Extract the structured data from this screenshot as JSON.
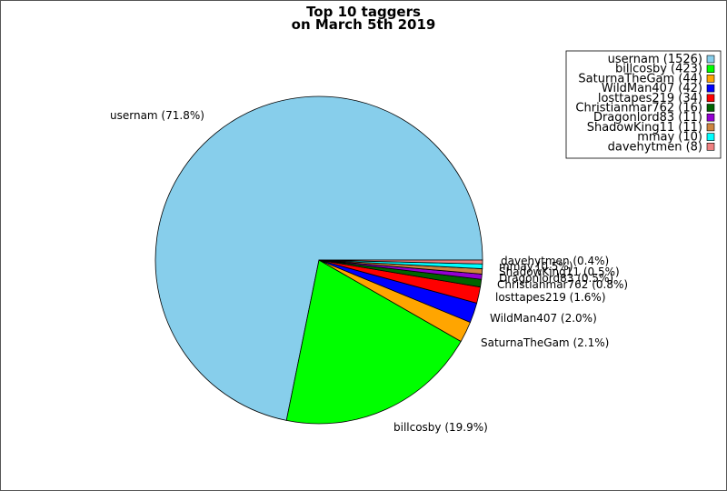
{
  "chart_data": {
    "type": "pie",
    "title": "Top 10 taggers",
    "subtitle": "on March 5th 2019",
    "legend_position": "top-right",
    "slices": [
      {
        "name": "usernam",
        "value": 1526,
        "pct_label": "usernam (71.8%)",
        "legend_label": "usernam (1526)",
        "color": "#87CEEB"
      },
      {
        "name": "billcosby",
        "value": 423,
        "pct_label": "billcosby (19.9%)",
        "legend_label": "billcosby (423)",
        "color": "#00FF00"
      },
      {
        "name": "SaturnaTheGam",
        "value": 44,
        "pct_label": "SaturnaTheGam (2.1%)",
        "legend_label": "SaturnaTheGam (44)",
        "color": "#FFA500"
      },
      {
        "name": "WildMan407",
        "value": 42,
        "pct_label": "WildMan407 (2.0%)",
        "legend_label": "WildMan407 (42)",
        "color": "#0000FF"
      },
      {
        "name": "losttapes219",
        "value": 34,
        "pct_label": "losttapes219 (1.6%)",
        "legend_label": "losttapes219 (34)",
        "color": "#FF0000"
      },
      {
        "name": "Christianmar762",
        "value": 16,
        "pct_label": "Christianmar762 (0.8%)",
        "legend_label": "Christianmar762 (16)",
        "color": "#006400"
      },
      {
        "name": "Dragonlord83",
        "value": 11,
        "pct_label": "Dragonlord83 (0.5%)",
        "legend_label": "Dragonlord83 (11)",
        "color": "#9400D3"
      },
      {
        "name": "ShadowKing11",
        "value": 11,
        "pct_label": "ShadowKing11 (0.5%)",
        "legend_label": "ShadowKing11 (11)",
        "color": "#CD853F"
      },
      {
        "name": "mmay",
        "value": 10,
        "pct_label": "mmay (0.5%)",
        "legend_label": "mmay (10)",
        "color": "#00FFFF"
      },
      {
        "name": "davehytmen",
        "value": 8,
        "pct_label": "davehytmen (0.4%)",
        "legend_label": "davehytmen (8)",
        "color": "#F08080"
      }
    ]
  }
}
